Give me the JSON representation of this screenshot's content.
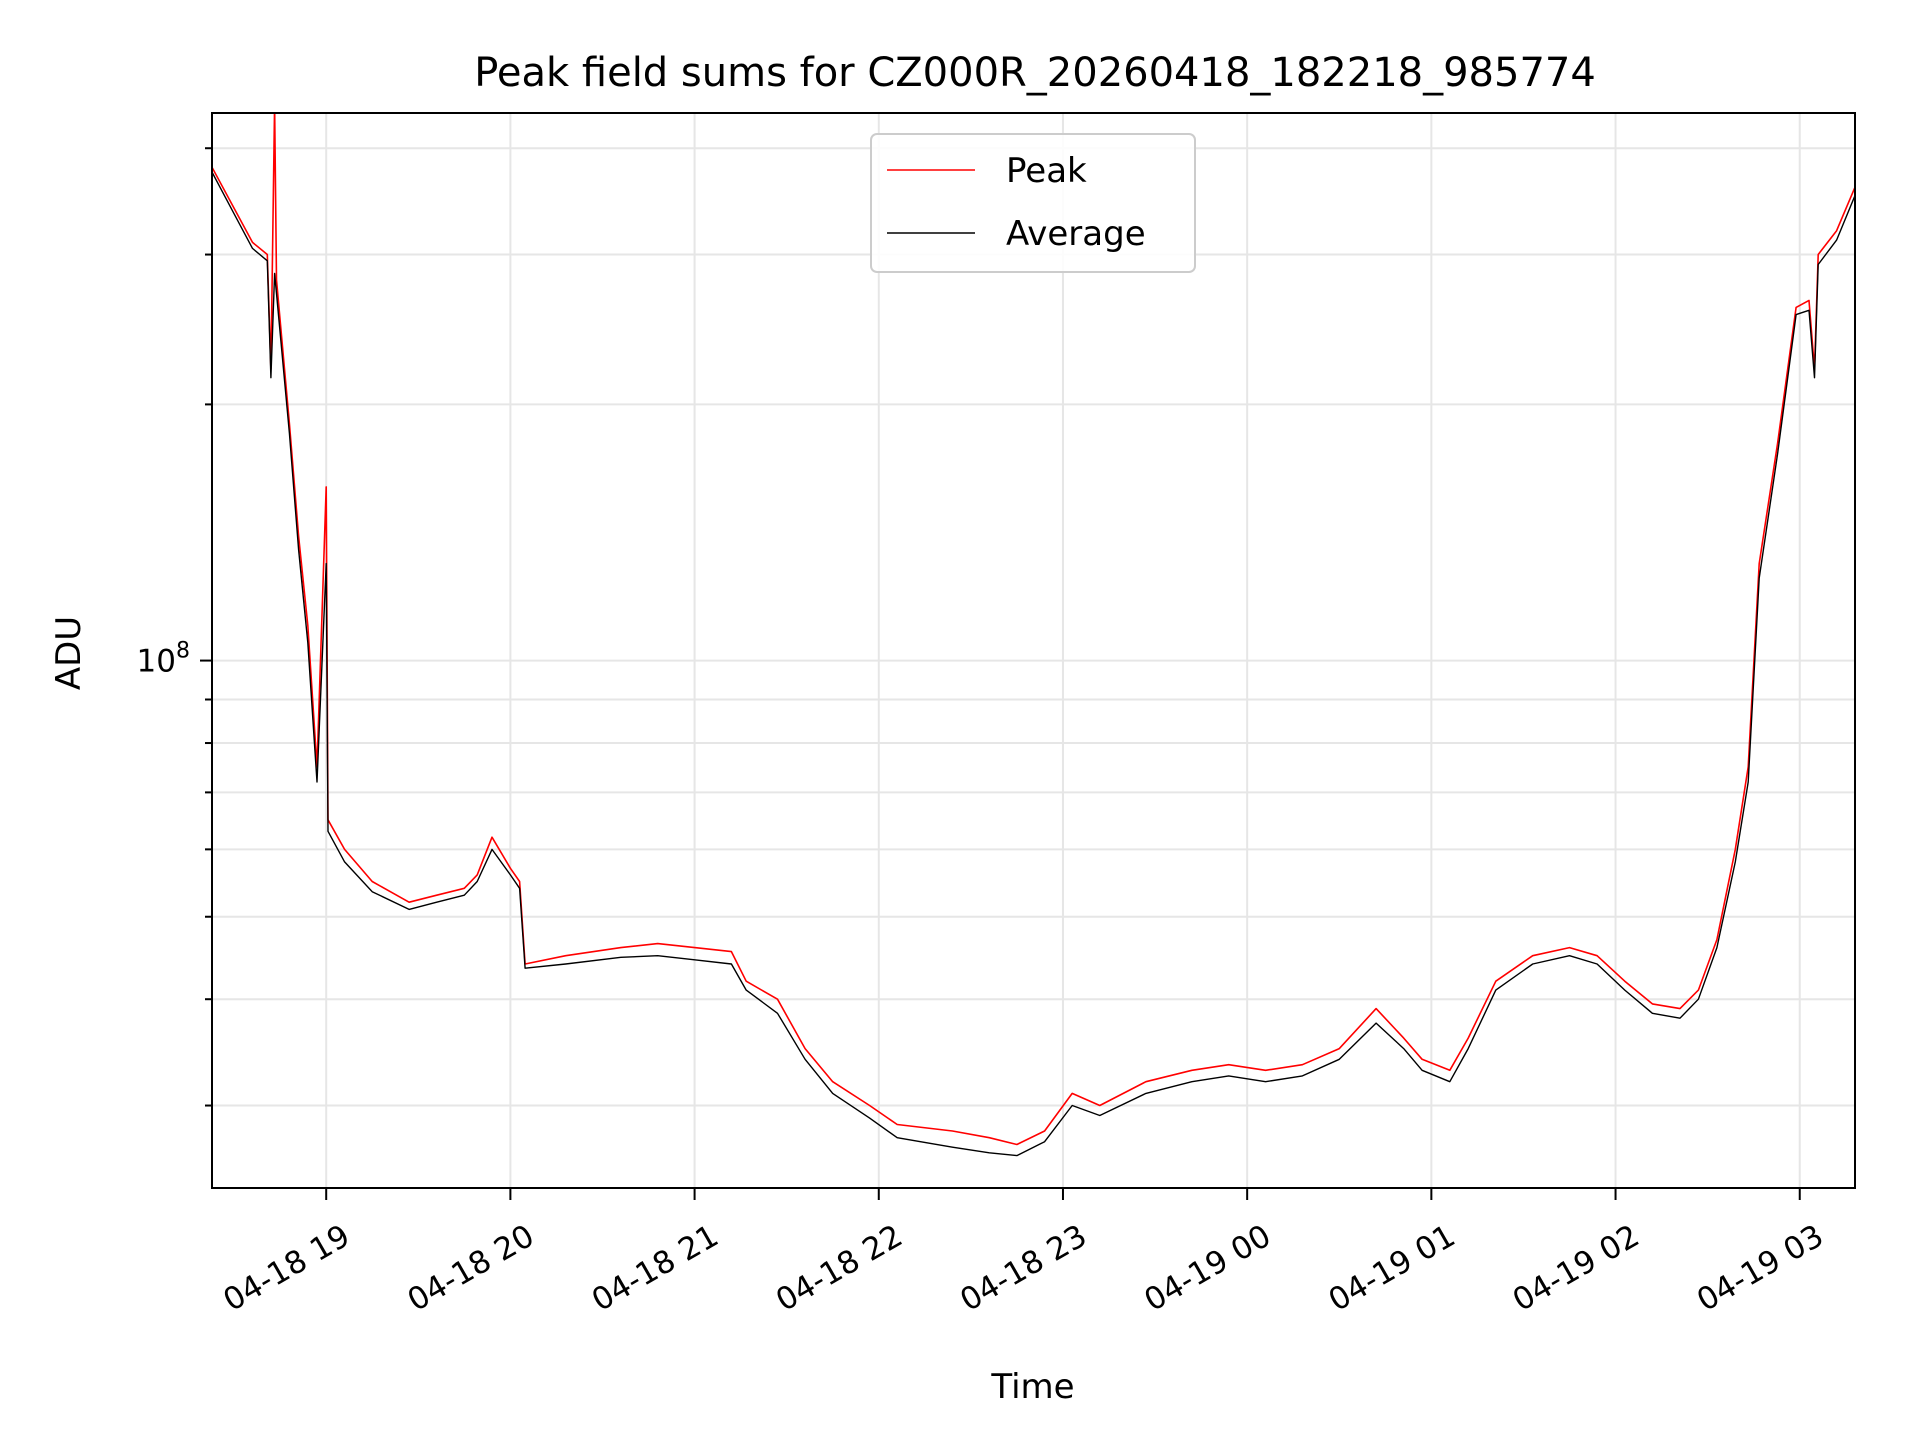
{
  "chart_data": {
    "type": "line",
    "title": "Peak field sums for CZ000R_20260418_182218_985774",
    "xlabel": "Time",
    "ylabel": "ADU",
    "yscale": "log",
    "ylim": [
      24000000,
      440000000
    ],
    "xlim_hours": [
      18.38,
      27.3
    ],
    "grid": true,
    "legend_position": "upper-center",
    "x_ticks": [
      {
        "hour": 19,
        "label": "04-18 19"
      },
      {
        "hour": 20,
        "label": "04-18 20"
      },
      {
        "hour": 21,
        "label": "04-18 21"
      },
      {
        "hour": 22,
        "label": "04-18 22"
      },
      {
        "hour": 23,
        "label": "04-18 23"
      },
      {
        "hour": 24,
        "label": "04-19 00"
      },
      {
        "hour": 25,
        "label": "04-19 01"
      },
      {
        "hour": 26,
        "label": "04-19 02"
      },
      {
        "hour": 27,
        "label": "04-19 03"
      }
    ],
    "y_major_tick": {
      "value": 100000000,
      "base": "10",
      "exponent": "8"
    },
    "y_minor_ticks": [
      30000000,
      40000000,
      50000000,
      60000000,
      70000000,
      80000000,
      90000000,
      200000000,
      300000000,
      400000000
    ],
    "series": [
      {
        "name": "Peak",
        "color": "#ff0000",
        "points": [
          [
            18.38,
            380000000
          ],
          [
            18.5,
            340000000
          ],
          [
            18.6,
            310000000
          ],
          [
            18.68,
            300000000
          ],
          [
            18.7,
            220000000
          ],
          [
            18.72,
            450000000
          ],
          [
            18.73,
            280000000
          ],
          [
            18.8,
            190000000
          ],
          [
            18.85,
            140000000
          ],
          [
            18.9,
            110000000
          ],
          [
            18.95,
            75000000
          ],
          [
            19.0,
            160000000
          ],
          [
            19.01,
            65000000
          ],
          [
            19.1,
            60000000
          ],
          [
            19.25,
            55000000
          ],
          [
            19.45,
            52000000
          ],
          [
            19.6,
            53000000
          ],
          [
            19.75,
            54000000
          ],
          [
            19.82,
            56000000
          ],
          [
            19.9,
            62000000
          ],
          [
            20.0,
            57000000
          ],
          [
            20.05,
            55000000
          ],
          [
            20.08,
            44000000
          ],
          [
            20.3,
            45000000
          ],
          [
            20.6,
            46000000
          ],
          [
            20.8,
            46500000
          ],
          [
            21.0,
            46000000
          ],
          [
            21.2,
            45500000
          ],
          [
            21.28,
            42000000
          ],
          [
            21.45,
            40000000
          ],
          [
            21.6,
            35000000
          ],
          [
            21.75,
            32000000
          ],
          [
            21.95,
            30000000
          ],
          [
            22.1,
            28500000
          ],
          [
            22.4,
            28000000
          ],
          [
            22.6,
            27500000
          ],
          [
            22.75,
            27000000
          ],
          [
            22.9,
            28000000
          ],
          [
            23.05,
            31000000
          ],
          [
            23.2,
            30000000
          ],
          [
            23.45,
            32000000
          ],
          [
            23.7,
            33000000
          ],
          [
            23.9,
            33500000
          ],
          [
            24.1,
            33000000
          ],
          [
            24.3,
            33500000
          ],
          [
            24.5,
            35000000
          ],
          [
            24.7,
            39000000
          ],
          [
            24.85,
            36000000
          ],
          [
            24.95,
            34000000
          ],
          [
            25.1,
            33000000
          ],
          [
            25.2,
            36000000
          ],
          [
            25.35,
            42000000
          ],
          [
            25.55,
            45000000
          ],
          [
            25.75,
            46000000
          ],
          [
            25.9,
            45000000
          ],
          [
            26.05,
            42000000
          ],
          [
            26.2,
            39500000
          ],
          [
            26.35,
            39000000
          ],
          [
            26.45,
            41000000
          ],
          [
            26.55,
            47000000
          ],
          [
            26.65,
            60000000
          ],
          [
            26.72,
            75000000
          ],
          [
            26.78,
            130000000
          ],
          [
            26.88,
            180000000
          ],
          [
            26.98,
            260000000
          ],
          [
            27.05,
            265000000
          ],
          [
            27.08,
            220000000
          ],
          [
            27.1,
            300000000
          ],
          [
            27.2,
            320000000
          ],
          [
            27.3,
            360000000
          ]
        ]
      },
      {
        "name": "Average",
        "color": "#000000",
        "points": [
          [
            18.38,
            375000000
          ],
          [
            18.5,
            335000000
          ],
          [
            18.6,
            305000000
          ],
          [
            18.68,
            295000000
          ],
          [
            18.7,
            215000000
          ],
          [
            18.72,
            285000000
          ],
          [
            18.73,
            270000000
          ],
          [
            18.8,
            185000000
          ],
          [
            18.85,
            135000000
          ],
          [
            18.9,
            105000000
          ],
          [
            18.95,
            72000000
          ],
          [
            19.0,
            130000000
          ],
          [
            19.01,
            63000000
          ],
          [
            19.1,
            58000000
          ],
          [
            19.25,
            53500000
          ],
          [
            19.45,
            51000000
          ],
          [
            19.6,
            52000000
          ],
          [
            19.75,
            53000000
          ],
          [
            19.82,
            55000000
          ],
          [
            19.9,
            60000000
          ],
          [
            20.0,
            56000000
          ],
          [
            20.05,
            54000000
          ],
          [
            20.08,
            43500000
          ],
          [
            20.3,
            44000000
          ],
          [
            20.6,
            44800000
          ],
          [
            20.8,
            45000000
          ],
          [
            21.0,
            44500000
          ],
          [
            21.2,
            44000000
          ],
          [
            21.28,
            41000000
          ],
          [
            21.45,
            38500000
          ],
          [
            21.6,
            34000000
          ],
          [
            21.75,
            31000000
          ],
          [
            21.95,
            29000000
          ],
          [
            22.1,
            27500000
          ],
          [
            22.4,
            26800000
          ],
          [
            22.6,
            26400000
          ],
          [
            22.75,
            26200000
          ],
          [
            22.9,
            27200000
          ],
          [
            23.05,
            30000000
          ],
          [
            23.2,
            29200000
          ],
          [
            23.45,
            31000000
          ],
          [
            23.7,
            32000000
          ],
          [
            23.9,
            32500000
          ],
          [
            24.1,
            32000000
          ],
          [
            24.3,
            32500000
          ],
          [
            24.5,
            34000000
          ],
          [
            24.7,
            37500000
          ],
          [
            24.85,
            35000000
          ],
          [
            24.95,
            33000000
          ],
          [
            25.1,
            32000000
          ],
          [
            25.2,
            35000000
          ],
          [
            25.35,
            41000000
          ],
          [
            25.55,
            44000000
          ],
          [
            25.75,
            45000000
          ],
          [
            25.9,
            44000000
          ],
          [
            26.05,
            41000000
          ],
          [
            26.2,
            38500000
          ],
          [
            26.35,
            38000000
          ],
          [
            26.45,
            40000000
          ],
          [
            26.55,
            46000000
          ],
          [
            26.65,
            58000000
          ],
          [
            26.72,
            72000000
          ],
          [
            26.78,
            125000000
          ],
          [
            26.88,
            175000000
          ],
          [
            26.98,
            255000000
          ],
          [
            27.05,
            258000000
          ],
          [
            27.08,
            215000000
          ],
          [
            27.1,
            292000000
          ],
          [
            27.2,
            312000000
          ],
          [
            27.3,
            352000000
          ]
        ]
      }
    ]
  }
}
